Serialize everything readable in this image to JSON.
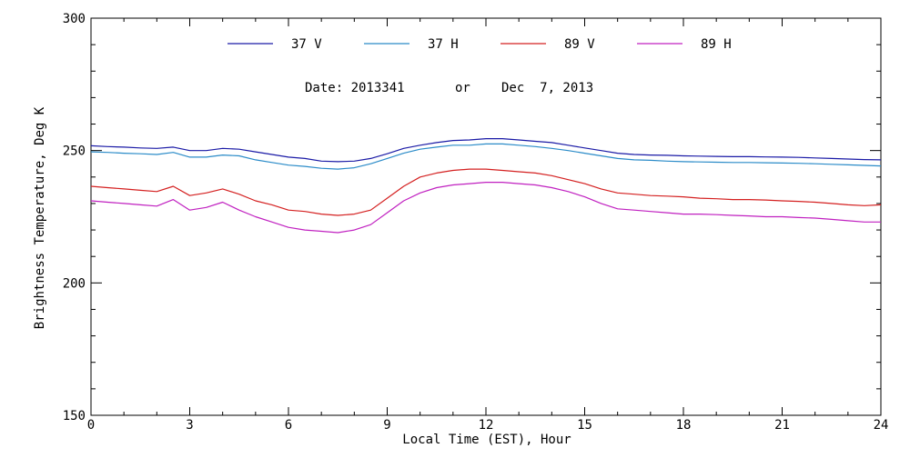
{
  "chart_data": {
    "type": "line",
    "title": "",
    "date_label": "Date: 2013341",
    "or_label": "or",
    "date_alt_label": "Dec  7, 2013",
    "xlabel": "Local Time (EST), Hour",
    "ylabel": "Brightness Temperature, Deg K",
    "xlim": [
      0,
      24
    ],
    "ylim": [
      150,
      300
    ],
    "xticks": [
      0,
      3,
      6,
      9,
      12,
      15,
      18,
      21,
      24
    ],
    "xtick_labels": [
      "0",
      "3",
      "6",
      "9",
      "12",
      "15",
      "18",
      "21",
      "24"
    ],
    "yticks": [
      150,
      200,
      250,
      300
    ],
    "ytick_labels": [
      "150",
      "200",
      "250",
      "300"
    ],
    "grid": false,
    "legend_position": "top",
    "x": [
      0,
      0.5,
      1,
      1.5,
      2,
      2.5,
      3,
      3.5,
      4,
      4.5,
      5,
      5.5,
      6,
      6.5,
      7,
      7.5,
      8,
      8.5,
      9,
      9.5,
      10,
      10.5,
      11,
      11.5,
      12,
      12.5,
      13,
      13.5,
      14,
      14.5,
      15,
      15.5,
      16,
      16.5,
      17,
      17.5,
      18,
      18.5,
      19,
      19.5,
      20,
      20.5,
      21,
      21.5,
      22,
      22.5,
      23,
      23.5,
      24
    ],
    "series": [
      {
        "name": "37 V",
        "color": "#1a1aa6",
        "values": [
          251.8,
          251.5,
          251.3,
          251.0,
          250.8,
          251.3,
          250.0,
          250.0,
          250.8,
          250.5,
          249.5,
          248.5,
          247.5,
          247.0,
          246.0,
          245.8,
          246.0,
          247.0,
          248.8,
          250.8,
          252.0,
          253.0,
          253.8,
          254.0,
          254.5,
          254.5,
          254.0,
          253.5,
          253.0,
          252.0,
          251.0,
          250.0,
          249.0,
          248.5,
          248.3,
          248.2,
          248.0,
          247.9,
          247.8,
          247.7,
          247.7,
          247.6,
          247.5,
          247.4,
          247.2,
          247.0,
          246.8,
          246.6,
          246.5
        ]
      },
      {
        "name": "37 H",
        "color": "#2a8bc8",
        "values": [
          249.5,
          249.3,
          249.0,
          248.8,
          248.5,
          249.3,
          247.5,
          247.5,
          248.3,
          248.0,
          246.5,
          245.5,
          244.5,
          244.0,
          243.3,
          243.0,
          243.5,
          245.0,
          247.0,
          249.0,
          250.5,
          251.3,
          252.0,
          252.0,
          252.5,
          252.5,
          252.0,
          251.5,
          250.8,
          250.0,
          249.0,
          248.0,
          247.0,
          246.5,
          246.3,
          246.0,
          245.8,
          245.7,
          245.6,
          245.5,
          245.5,
          245.4,
          245.3,
          245.2,
          245.0,
          244.8,
          244.6,
          244.4,
          244.2
        ]
      },
      {
        "name": "89 V",
        "color": "#d42020",
        "values": [
          236.5,
          236.0,
          235.5,
          235.0,
          234.5,
          236.5,
          233.0,
          234.0,
          235.5,
          233.5,
          231.0,
          229.5,
          227.5,
          227.0,
          226.0,
          225.5,
          226.0,
          227.5,
          232.0,
          236.5,
          240.0,
          241.5,
          242.5,
          243.0,
          243.0,
          242.5,
          242.0,
          241.5,
          240.5,
          239.0,
          237.5,
          235.5,
          234.0,
          233.5,
          233.0,
          232.8,
          232.5,
          232.0,
          231.8,
          231.5,
          231.5,
          231.3,
          231.0,
          230.8,
          230.5,
          230.0,
          229.5,
          229.2,
          229.5
        ]
      },
      {
        "name": "89 H",
        "color": "#c020c0",
        "values": [
          231.0,
          230.5,
          230.0,
          229.5,
          229.0,
          231.5,
          227.5,
          228.5,
          230.5,
          227.5,
          225.0,
          223.0,
          221.0,
          220.0,
          219.5,
          219.0,
          220.0,
          222.0,
          226.5,
          231.0,
          234.0,
          236.0,
          237.0,
          237.5,
          238.0,
          238.0,
          237.5,
          237.0,
          236.0,
          234.5,
          232.5,
          230.0,
          228.0,
          227.5,
          227.0,
          226.5,
          226.0,
          226.0,
          225.8,
          225.5,
          225.3,
          225.0,
          225.0,
          224.7,
          224.5,
          224.0,
          223.5,
          223.0,
          223.0
        ]
      }
    ]
  }
}
